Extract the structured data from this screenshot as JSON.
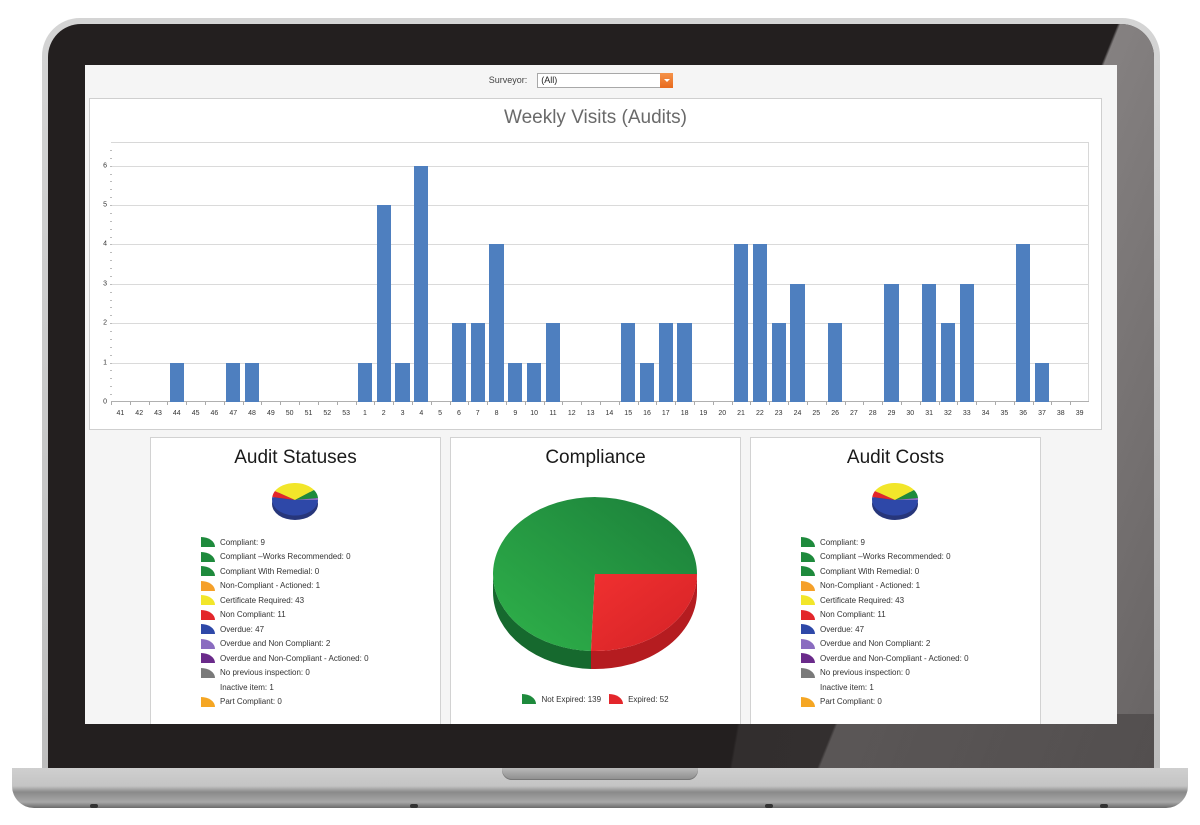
{
  "filter": {
    "label": "Surveyor:",
    "selected": "(All)"
  },
  "weekly_chart": {
    "title": "Weekly Visits (Audits)"
  },
  "audit_statuses": {
    "title": "Audit Statuses",
    "legend": [
      {
        "label": "Compliant: 9",
        "color": "#1e8a3c"
      },
      {
        "label": "Compliant –Works Recommended: 0",
        "color": "#1e8a3c"
      },
      {
        "label": "Compliant With Remedial: 0",
        "color": "#1e8a3c"
      },
      {
        "label": "Non-Compliant - Actioned: 1",
        "color": "#f5a02a"
      },
      {
        "label": "Certificate Required: 43",
        "color": "#f2e62a"
      },
      {
        "label": "Non Compliant: 11",
        "color": "#e3262b"
      },
      {
        "label": "Overdue: 47",
        "color": "#2e48a8"
      },
      {
        "label": "Overdue and Non Compliant: 2",
        "color": "#8a6cc0"
      },
      {
        "label": "Overdue and Non-Compliant - Actioned: 0",
        "color": "#6a2a8a"
      },
      {
        "label": "No previous inspection: 0",
        "color": "#7a7a7a"
      },
      {
        "label": "Inactive item: 1",
        "color": ""
      },
      {
        "label": "Part Compliant: 0",
        "color": "#f5a623"
      }
    ]
  },
  "compliance": {
    "title": "Compliance",
    "legend": [
      {
        "label": "Not Expired: 139",
        "color": "#1e8a3c"
      },
      {
        "label": "Expired: 52",
        "color": "#e3262b"
      }
    ]
  },
  "audit_costs": {
    "title": "Audit Costs",
    "legend": [
      {
        "label": "Compliant: 9",
        "color": "#1e8a3c"
      },
      {
        "label": "Compliant –Works Recommended: 0",
        "color": "#1e8a3c"
      },
      {
        "label": "Compliant With Remedial: 0",
        "color": "#1e8a3c"
      },
      {
        "label": "Non-Compliant - Actioned: 1",
        "color": "#f5a02a"
      },
      {
        "label": "Certificate Required: 43",
        "color": "#f2e62a"
      },
      {
        "label": "Non Compliant: 11",
        "color": "#e3262b"
      },
      {
        "label": "Overdue: 47",
        "color": "#2e48a8"
      },
      {
        "label": "Overdue and Non Compliant: 2",
        "color": "#8a6cc0"
      },
      {
        "label": "Overdue and Non-Compliant - Actioned: 0",
        "color": "#6a2a8a"
      },
      {
        "label": "No previous inspection: 0",
        "color": "#7a7a7a"
      },
      {
        "label": "Inactive item: 1",
        "color": ""
      },
      {
        "label": "Part Compliant: 0",
        "color": "#f5a623"
      }
    ]
  },
  "colors": {
    "bar": "#4e7fbf",
    "accent_dropdown": "#ef7a2c"
  },
  "chart_data": [
    {
      "type": "bar",
      "title": "Weekly Visits (Audits)",
      "xlabel": "",
      "ylabel": "",
      "ylim": [
        0,
        6.6
      ],
      "yticks": [
        0,
        1,
        2,
        3,
        4,
        5,
        6
      ],
      "grid": true,
      "categories": [
        "41",
        "42",
        "43",
        "44",
        "45",
        "46",
        "47",
        "48",
        "49",
        "50",
        "51",
        "52",
        "53",
        "1",
        "2",
        "3",
        "4",
        "5",
        "6",
        "7",
        "8",
        "9",
        "10",
        "11",
        "12",
        "13",
        "14",
        "15",
        "16",
        "17",
        "18",
        "19",
        "20",
        "21",
        "22",
        "23",
        "24",
        "25",
        "26",
        "27",
        "28",
        "29",
        "30",
        "31",
        "32",
        "33",
        "34",
        "35",
        "36",
        "37",
        "38",
        "39"
      ],
      "values": [
        0,
        0,
        0,
        1,
        0,
        0,
        1,
        1,
        0,
        0,
        0,
        0,
        0,
        1,
        5,
        1,
        6,
        0,
        2,
        2,
        4,
        1,
        1,
        2,
        0,
        0,
        0,
        2,
        1,
        2,
        2,
        0,
        0,
        4,
        4,
        2,
        3,
        0,
        2,
        0,
        0,
        3,
        0,
        3,
        2,
        3,
        0,
        0,
        4,
        1,
        0,
        0
      ]
    },
    {
      "type": "pie",
      "title": "Audit Statuses",
      "labels": [
        "Compliant",
        "Compliant –Works Recommended",
        "Compliant With Remedial",
        "Non-Compliant - Actioned",
        "Certificate Required",
        "Non Compliant",
        "Overdue",
        "Overdue and Non Compliant",
        "Overdue and Non-Compliant - Actioned",
        "No previous inspection",
        "Inactive item",
        "Part Compliant"
      ],
      "values": [
        9,
        0,
        0,
        1,
        43,
        11,
        47,
        2,
        0,
        0,
        1,
        0
      ],
      "legend_position": "bottom"
    },
    {
      "type": "pie",
      "title": "Compliance",
      "labels": [
        "Not Expired",
        "Expired"
      ],
      "values": [
        139,
        52
      ],
      "legend_position": "bottom"
    },
    {
      "type": "pie",
      "title": "Audit Costs",
      "labels": [
        "Compliant",
        "Compliant –Works Recommended",
        "Compliant With Remedial",
        "Non-Compliant - Actioned",
        "Certificate Required",
        "Non Compliant",
        "Overdue",
        "Overdue and Non Compliant",
        "Overdue and Non-Compliant - Actioned",
        "No previous inspection",
        "Inactive item",
        "Part Compliant"
      ],
      "values": [
        9,
        0,
        0,
        1,
        43,
        11,
        47,
        2,
        0,
        0,
        1,
        0
      ],
      "legend_position": "bottom"
    }
  ]
}
